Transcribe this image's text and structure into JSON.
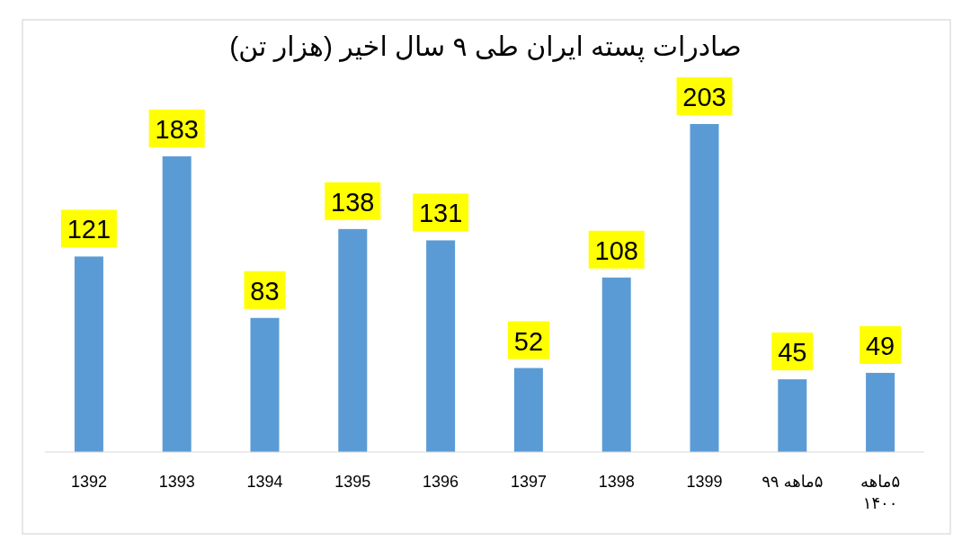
{
  "chart_data": {
    "type": "bar",
    "title": "صادرات پسته ایران طی ۹ سال اخیر (هزار تن)",
    "categories": [
      "1392",
      "1393",
      "1394",
      "1395",
      "1396",
      "1397",
      "1398",
      "1399",
      "۵ماهه ۹۹",
      "۵ماهه ۱۴۰۰"
    ],
    "values": [
      121,
      183,
      83,
      138,
      131,
      52,
      108,
      203,
      45,
      49
    ],
    "color": "#5b9bd5",
    "data_labels": true
  }
}
